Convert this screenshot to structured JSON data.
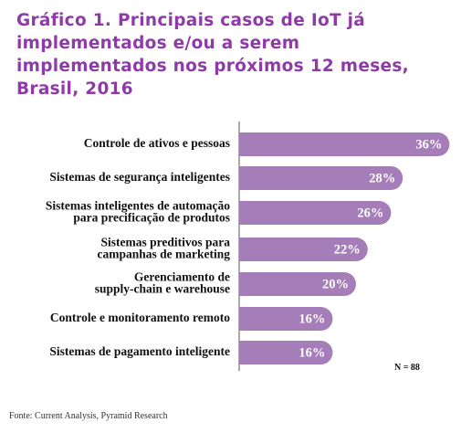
{
  "chart_data": {
    "type": "bar",
    "orientation": "horizontal",
    "title": "Gráfico 1. Principais casos de IoT já implementados e/ou a serem implementados nos próximos 12 meses, Brasil, 2016",
    "categories": [
      "Controle de ativos e pessoas",
      "Sistemas de segurança inteligentes",
      "Sistemas inteligentes de automação\npara precificação de produtos",
      "Sistemas preditivos para\ncampanhas de marketing",
      "Gerenciamento de\nsupply-chain e warehouse",
      "Controle e monitoramento remoto",
      "Sistemas de pagamento inteligente"
    ],
    "values": [
      36,
      28,
      26,
      22,
      20,
      16,
      16
    ],
    "value_labels": [
      "36%",
      "28%",
      "26%",
      "22%",
      "20%",
      "16%",
      "16%"
    ],
    "color": "#a57db9",
    "note": "N = 88",
    "source": "Fonte: Current Analysis, Pyramid Research"
  }
}
